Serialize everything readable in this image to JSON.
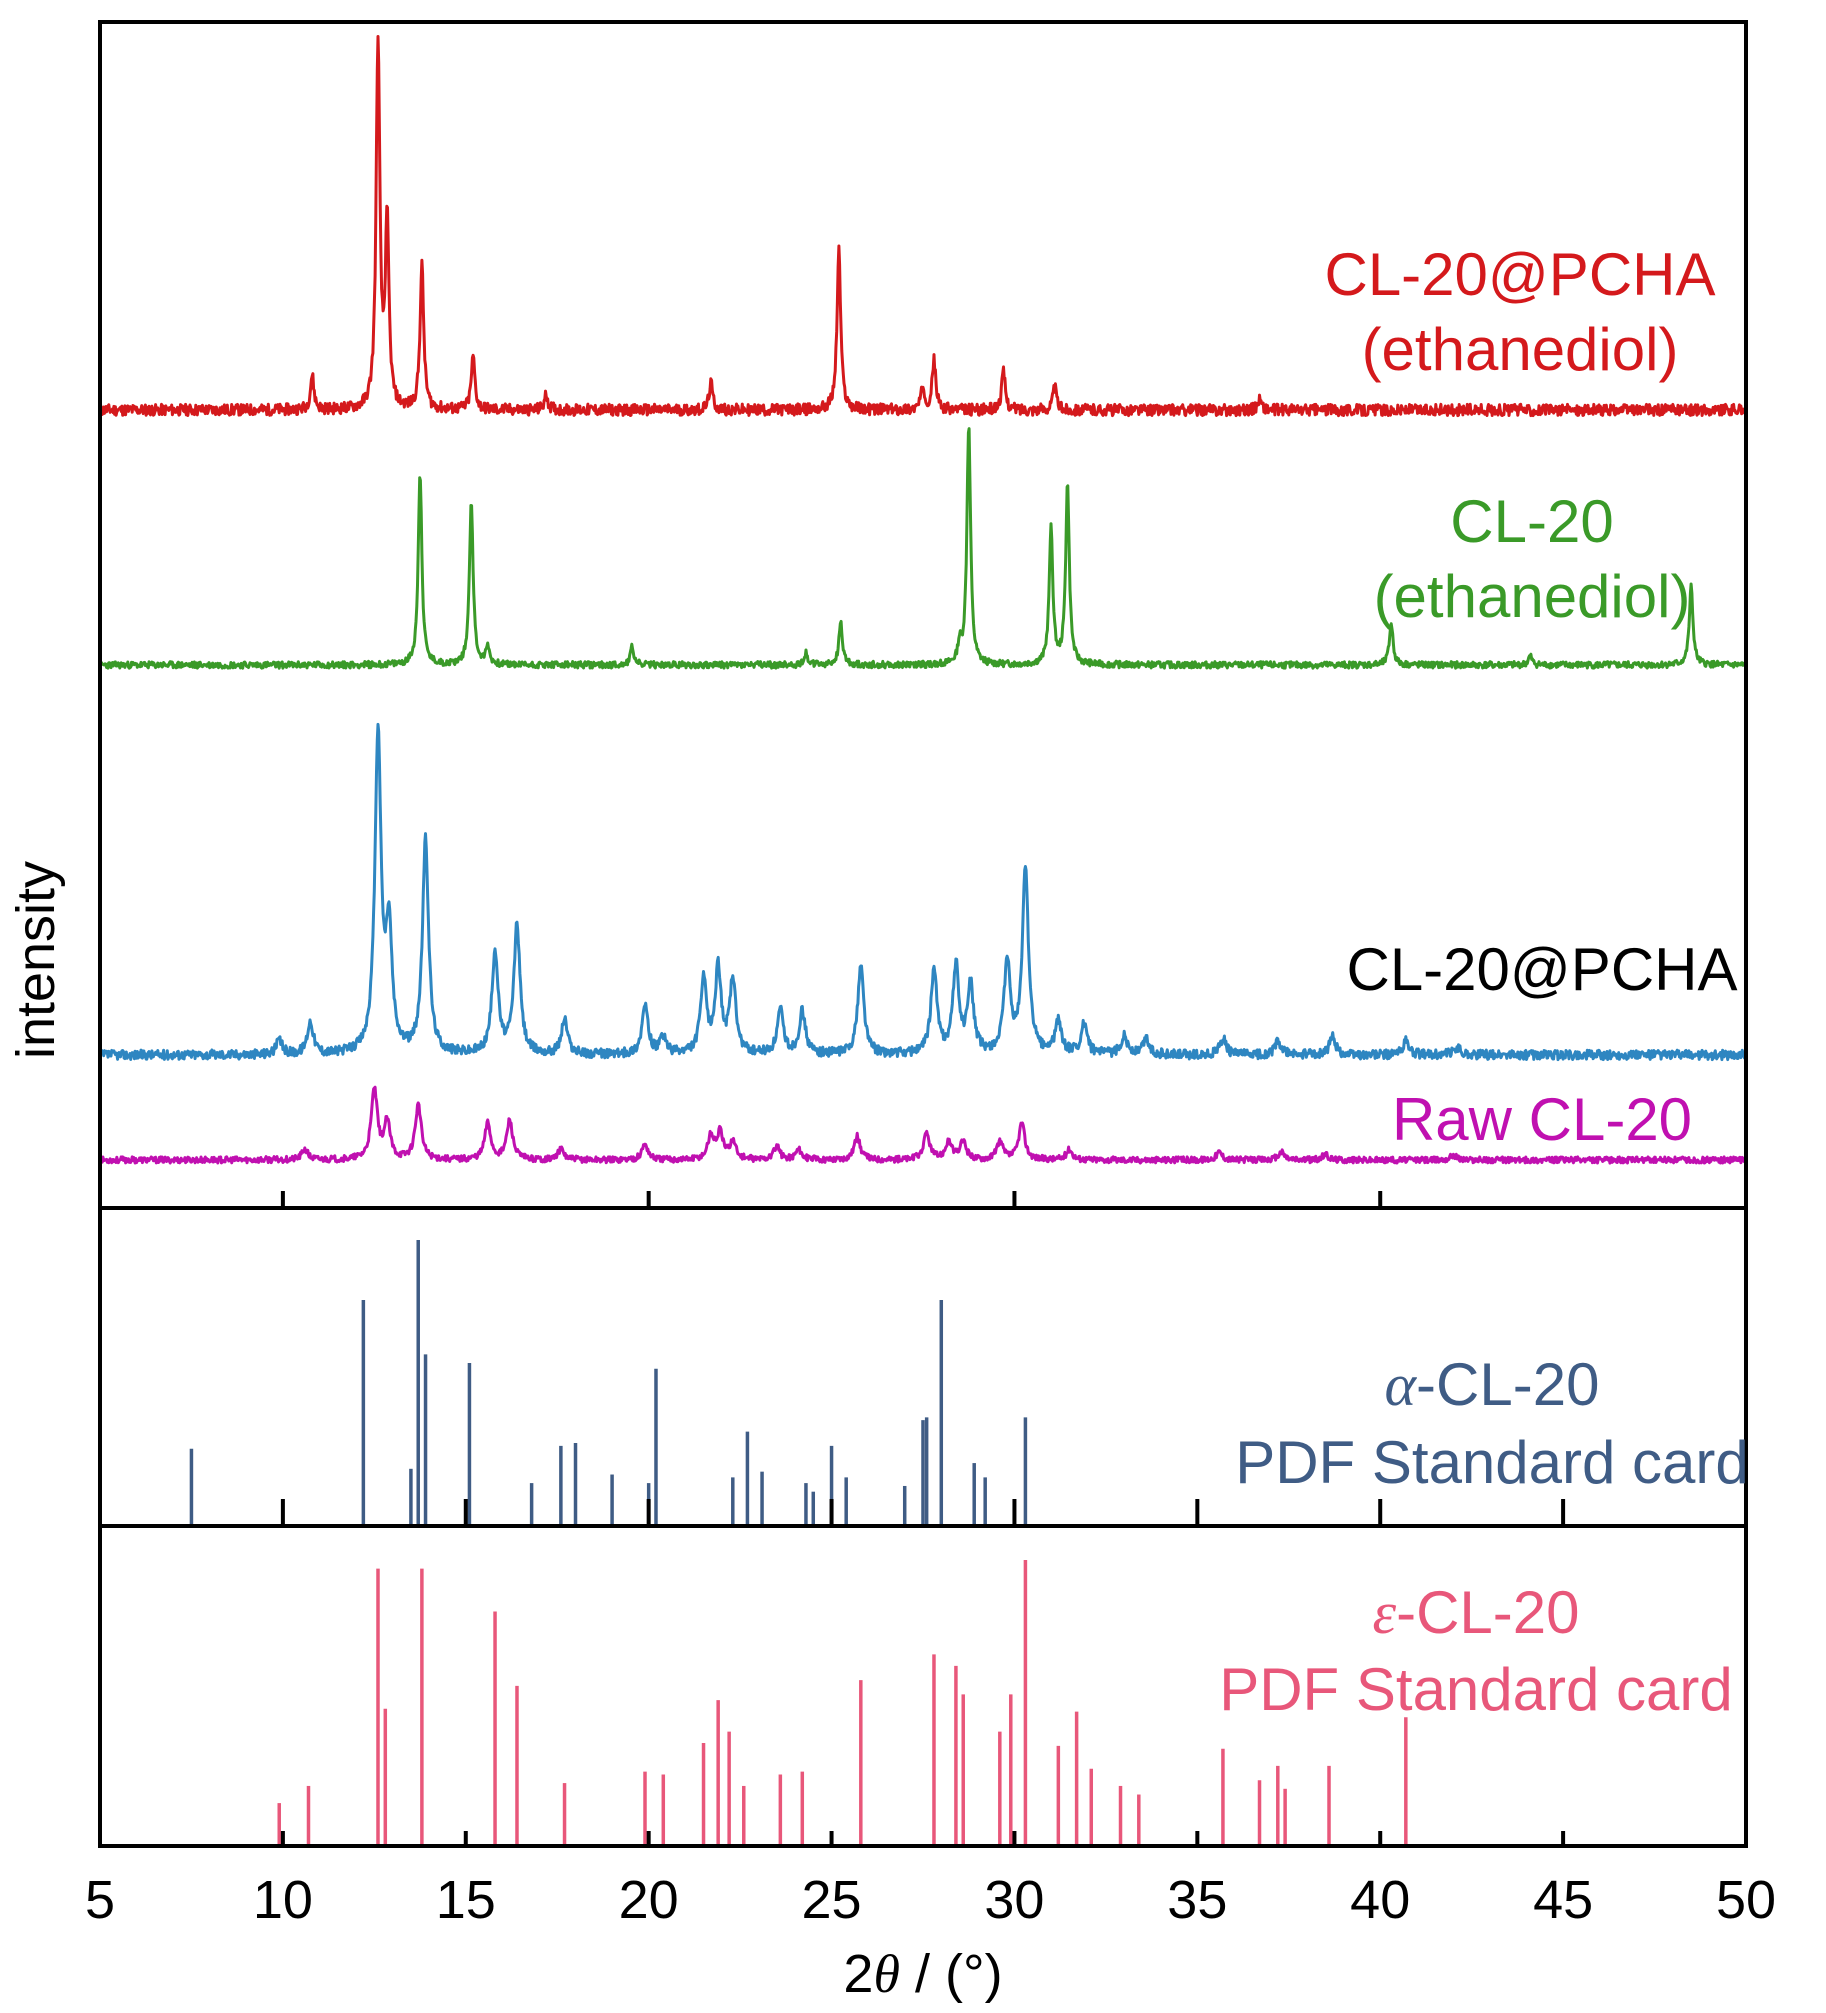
{
  "chart_data": {
    "type": "line",
    "x_axis": {
      "label_prefix": "2",
      "label_symbol": "θ",
      "label_suffix": " / (°)",
      "range": [
        5,
        50
      ],
      "ticks": [
        "5",
        "10",
        "15",
        "20",
        "25",
        "30",
        "35",
        "40",
        "45",
        "50"
      ]
    },
    "y_axis": {
      "label": "intensity"
    },
    "panels": [
      {
        "name": "XRD patterns",
        "type": "line",
        "series": [
          {
            "label_lines": [
              "CL-20@PCHA",
              "(ethanediol)"
            ],
            "color": "#d4191c",
            "peaks": [
              [
                10.8,
                9
              ],
              [
                12.6,
                97
              ],
              [
                12.85,
                48
              ],
              [
                13.8,
                38
              ],
              [
                15.2,
                14
              ],
              [
                17.2,
                4
              ],
              [
                21.7,
                7
              ],
              [
                25.2,
                42
              ],
              [
                27.5,
                6
              ],
              [
                27.8,
                13
              ],
              [
                29.7,
                10
              ],
              [
                31.1,
                6
              ],
              [
                36.7,
                3
              ]
            ]
          },
          {
            "label_lines": [
              "CL-20",
              "(ethanediol)"
            ],
            "color": "#3a9a28",
            "peaks": [
              [
                13.75,
                64
              ],
              [
                15.15,
                55
              ],
              [
                15.6,
                6
              ],
              [
                19.55,
                6
              ],
              [
                24.3,
                4
              ],
              [
                25.25,
                14
              ],
              [
                28.5,
                6
              ],
              [
                28.75,
                80
              ],
              [
                31.0,
                45
              ],
              [
                31.45,
                60
              ],
              [
                40.3,
                14
              ],
              [
                44.1,
                3
              ],
              [
                48.5,
                26
              ]
            ]
          },
          {
            "label_lines": [
              "CL-20@PCHA"
            ],
            "label_color": "#000000",
            "color": "#2e86c1",
            "peaks": [
              [
                9.9,
                5
              ],
              [
                10.75,
                12
              ],
              [
                12.6,
                118
              ],
              [
                12.9,
                44
              ],
              [
                13.9,
                79
              ],
              [
                15.8,
                38
              ],
              [
                16.4,
                48
              ],
              [
                17.7,
                13
              ],
              [
                19.9,
                18
              ],
              [
                20.4,
                6
              ],
              [
                21.5,
                27
              ],
              [
                21.9,
                31
              ],
              [
                22.3,
                27
              ],
              [
                23.6,
                16
              ],
              [
                24.2,
                16
              ],
              [
                25.8,
                33
              ],
              [
                27.8,
                31
              ],
              [
                28.4,
                32
              ],
              [
                28.8,
                25
              ],
              [
                29.8,
                34
              ],
              [
                30.3,
                69
              ],
              [
                31.2,
                12
              ],
              [
                31.9,
                11
              ],
              [
                33.0,
                7
              ],
              [
                33.6,
                6
              ],
              [
                35.7,
                6
              ],
              [
                37.2,
                5
              ],
              [
                38.7,
                7
              ],
              [
                40.7,
                5
              ],
              [
                42.1,
                3
              ]
            ]
          },
          {
            "label_lines": [
              "Raw CL-20"
            ],
            "color": "#c010b0",
            "peaks": [
              [
                10.6,
                4
              ],
              [
                12.5,
                27
              ],
              [
                12.85,
                14
              ],
              [
                13.7,
                21
              ],
              [
                15.6,
                14
              ],
              [
                16.2,
                15
              ],
              [
                17.6,
                4
              ],
              [
                19.9,
                6
              ],
              [
                21.7,
                9
              ],
              [
                21.95,
                10
              ],
              [
                22.3,
                7
              ],
              [
                23.5,
                5
              ],
              [
                24.1,
                4
              ],
              [
                25.7,
                9
              ],
              [
                27.6,
                10
              ],
              [
                28.2,
                7
              ],
              [
                28.6,
                7
              ],
              [
                29.6,
                7
              ],
              [
                30.2,
                14
              ],
              [
                31.5,
                4
              ],
              [
                35.6,
                3
              ],
              [
                37.3,
                3
              ],
              [
                38.5,
                2
              ],
              [
                42.0,
                2
              ]
            ]
          }
        ]
      },
      {
        "name": "alpha-CL-20 reference",
        "type": "bar",
        "label_symbol": "α",
        "label_line1": "-CL-20",
        "label_line2": "PDF Standard card",
        "color": "#3f5c85",
        "ylim": [
          0,
          100
        ],
        "x": [
          7.5,
          12.2,
          13.5,
          13.7,
          13.9,
          15.1,
          16.8,
          17.6,
          18.0,
          19.0,
          20.0,
          20.2,
          22.3,
          22.7,
          23.1,
          24.3,
          24.5,
          25.0,
          25.4,
          27.0,
          27.5,
          27.6,
          28.0,
          28.9,
          29.2,
          30.3
        ],
        "values": [
          27,
          79,
          20,
          100,
          60,
          57,
          15,
          28,
          29,
          18,
          15,
          55,
          17,
          33,
          19,
          15,
          12,
          28,
          17,
          14,
          37,
          38,
          79,
          22,
          17,
          38
        ]
      },
      {
        "name": "epsilon-CL-20 reference",
        "type": "bar",
        "label_symbol": "ε",
        "label_line1": "-CL-20",
        "label_line2": "PDF Standard card",
        "color": "#e8577a",
        "ylim": [
          0,
          100
        ],
        "x": [
          9.9,
          10.7,
          12.6,
          12.8,
          13.8,
          15.8,
          16.4,
          17.7,
          19.9,
          20.4,
          21.5,
          21.9,
          22.2,
          22.6,
          23.6,
          24.2,
          25.8,
          27.8,
          28.4,
          28.6,
          29.6,
          29.9,
          30.3,
          31.2,
          31.7,
          32.1,
          32.9,
          33.4,
          35.7,
          36.7,
          37.2,
          37.4,
          38.6,
          40.7
        ],
        "values": [
          15,
          21,
          97,
          48,
          97,
          82,
          56,
          22,
          26,
          25,
          36,
          51,
          40,
          21,
          25,
          26,
          58,
          67,
          63,
          53,
          40,
          53,
          100,
          35,
          47,
          27,
          21,
          18,
          34,
          23,
          28,
          20,
          28,
          45
        ]
      }
    ]
  }
}
